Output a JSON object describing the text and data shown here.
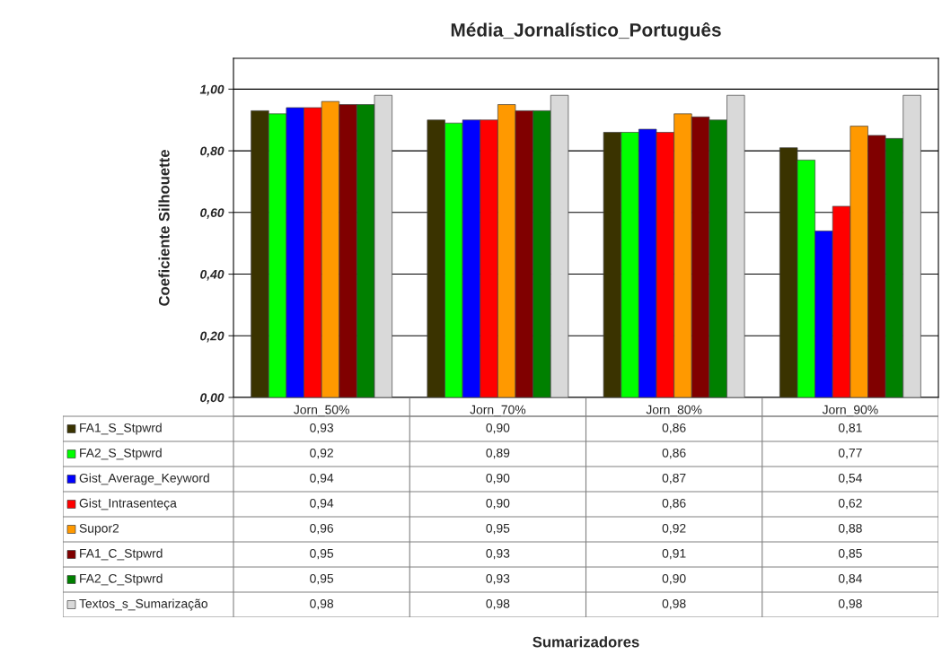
{
  "chart_data": {
    "type": "bar",
    "title": "Média_Jornalístico_Português",
    "annotations": [
      "Sumarizadores"
    ],
    "ylabel": "Coeficiente Silhouette",
    "categories": [
      "Jorn_50%",
      "Jorn_70%",
      "Jorn_80%",
      "Jorn_90%"
    ],
    "series": [
      {
        "name": "FA1_S_Stpwrd",
        "color": "#3a3300",
        "values": [
          0.93,
          0.9,
          0.86,
          0.81
        ],
        "value_labels": [
          "0,93",
          "0,90",
          "0,86",
          "0,81"
        ]
      },
      {
        "name": "FA2_S_Stpwrd",
        "color": "#00ff00",
        "values": [
          0.92,
          0.89,
          0.86,
          0.77
        ],
        "value_labels": [
          "0,92",
          "0,89",
          "0,86",
          "0,77"
        ]
      },
      {
        "name": "Gist_Average_Keyword",
        "color": "#0000ff",
        "values": [
          0.94,
          0.9,
          0.87,
          0.54
        ],
        "value_labels": [
          "0,94",
          "0,90",
          "0,87",
          "0,54"
        ]
      },
      {
        "name": "Gist_Intrasenteça",
        "color": "#ff0000",
        "values": [
          0.94,
          0.9,
          0.86,
          0.62
        ],
        "value_labels": [
          "0,94",
          "0,90",
          "0,86",
          "0,62"
        ]
      },
      {
        "name": "Supor2",
        "color": "#ff9900",
        "values": [
          0.96,
          0.95,
          0.92,
          0.88
        ],
        "value_labels": [
          "0,96",
          "0,95",
          "0,92",
          "0,88"
        ]
      },
      {
        "name": "FA1_C_Stpwrd",
        "color": "#800000",
        "values": [
          0.95,
          0.93,
          0.91,
          0.85
        ],
        "value_labels": [
          "0,95",
          "0,93",
          "0,91",
          "0,85"
        ]
      },
      {
        "name": "FA2_C_Stpwrd",
        "color": "#008000",
        "values": [
          0.95,
          0.93,
          0.9,
          0.84
        ],
        "value_labels": [
          "0,95",
          "0,93",
          "0,90",
          "0,84"
        ]
      },
      {
        "name": "Textos_s_Sumarização",
        "color": "#d9d9d9",
        "values": [
          0.98,
          0.98,
          0.98,
          0.98
        ],
        "value_labels": [
          "0,98",
          "0,98",
          "0,98",
          "0,98"
        ]
      }
    ],
    "ylim": [
      0,
      1.1
    ],
    "yticks": [
      {
        "value": 0,
        "label": "0,00"
      },
      {
        "value": 0.2,
        "label": "0,20"
      },
      {
        "value": 0.4,
        "label": "0,40"
      },
      {
        "value": 0.6,
        "label": "0,60"
      },
      {
        "value": 0.8,
        "label": "0,80"
      },
      {
        "value": 1.0,
        "label": "1,00"
      }
    ],
    "grid": "y",
    "legend": "bottom"
  }
}
